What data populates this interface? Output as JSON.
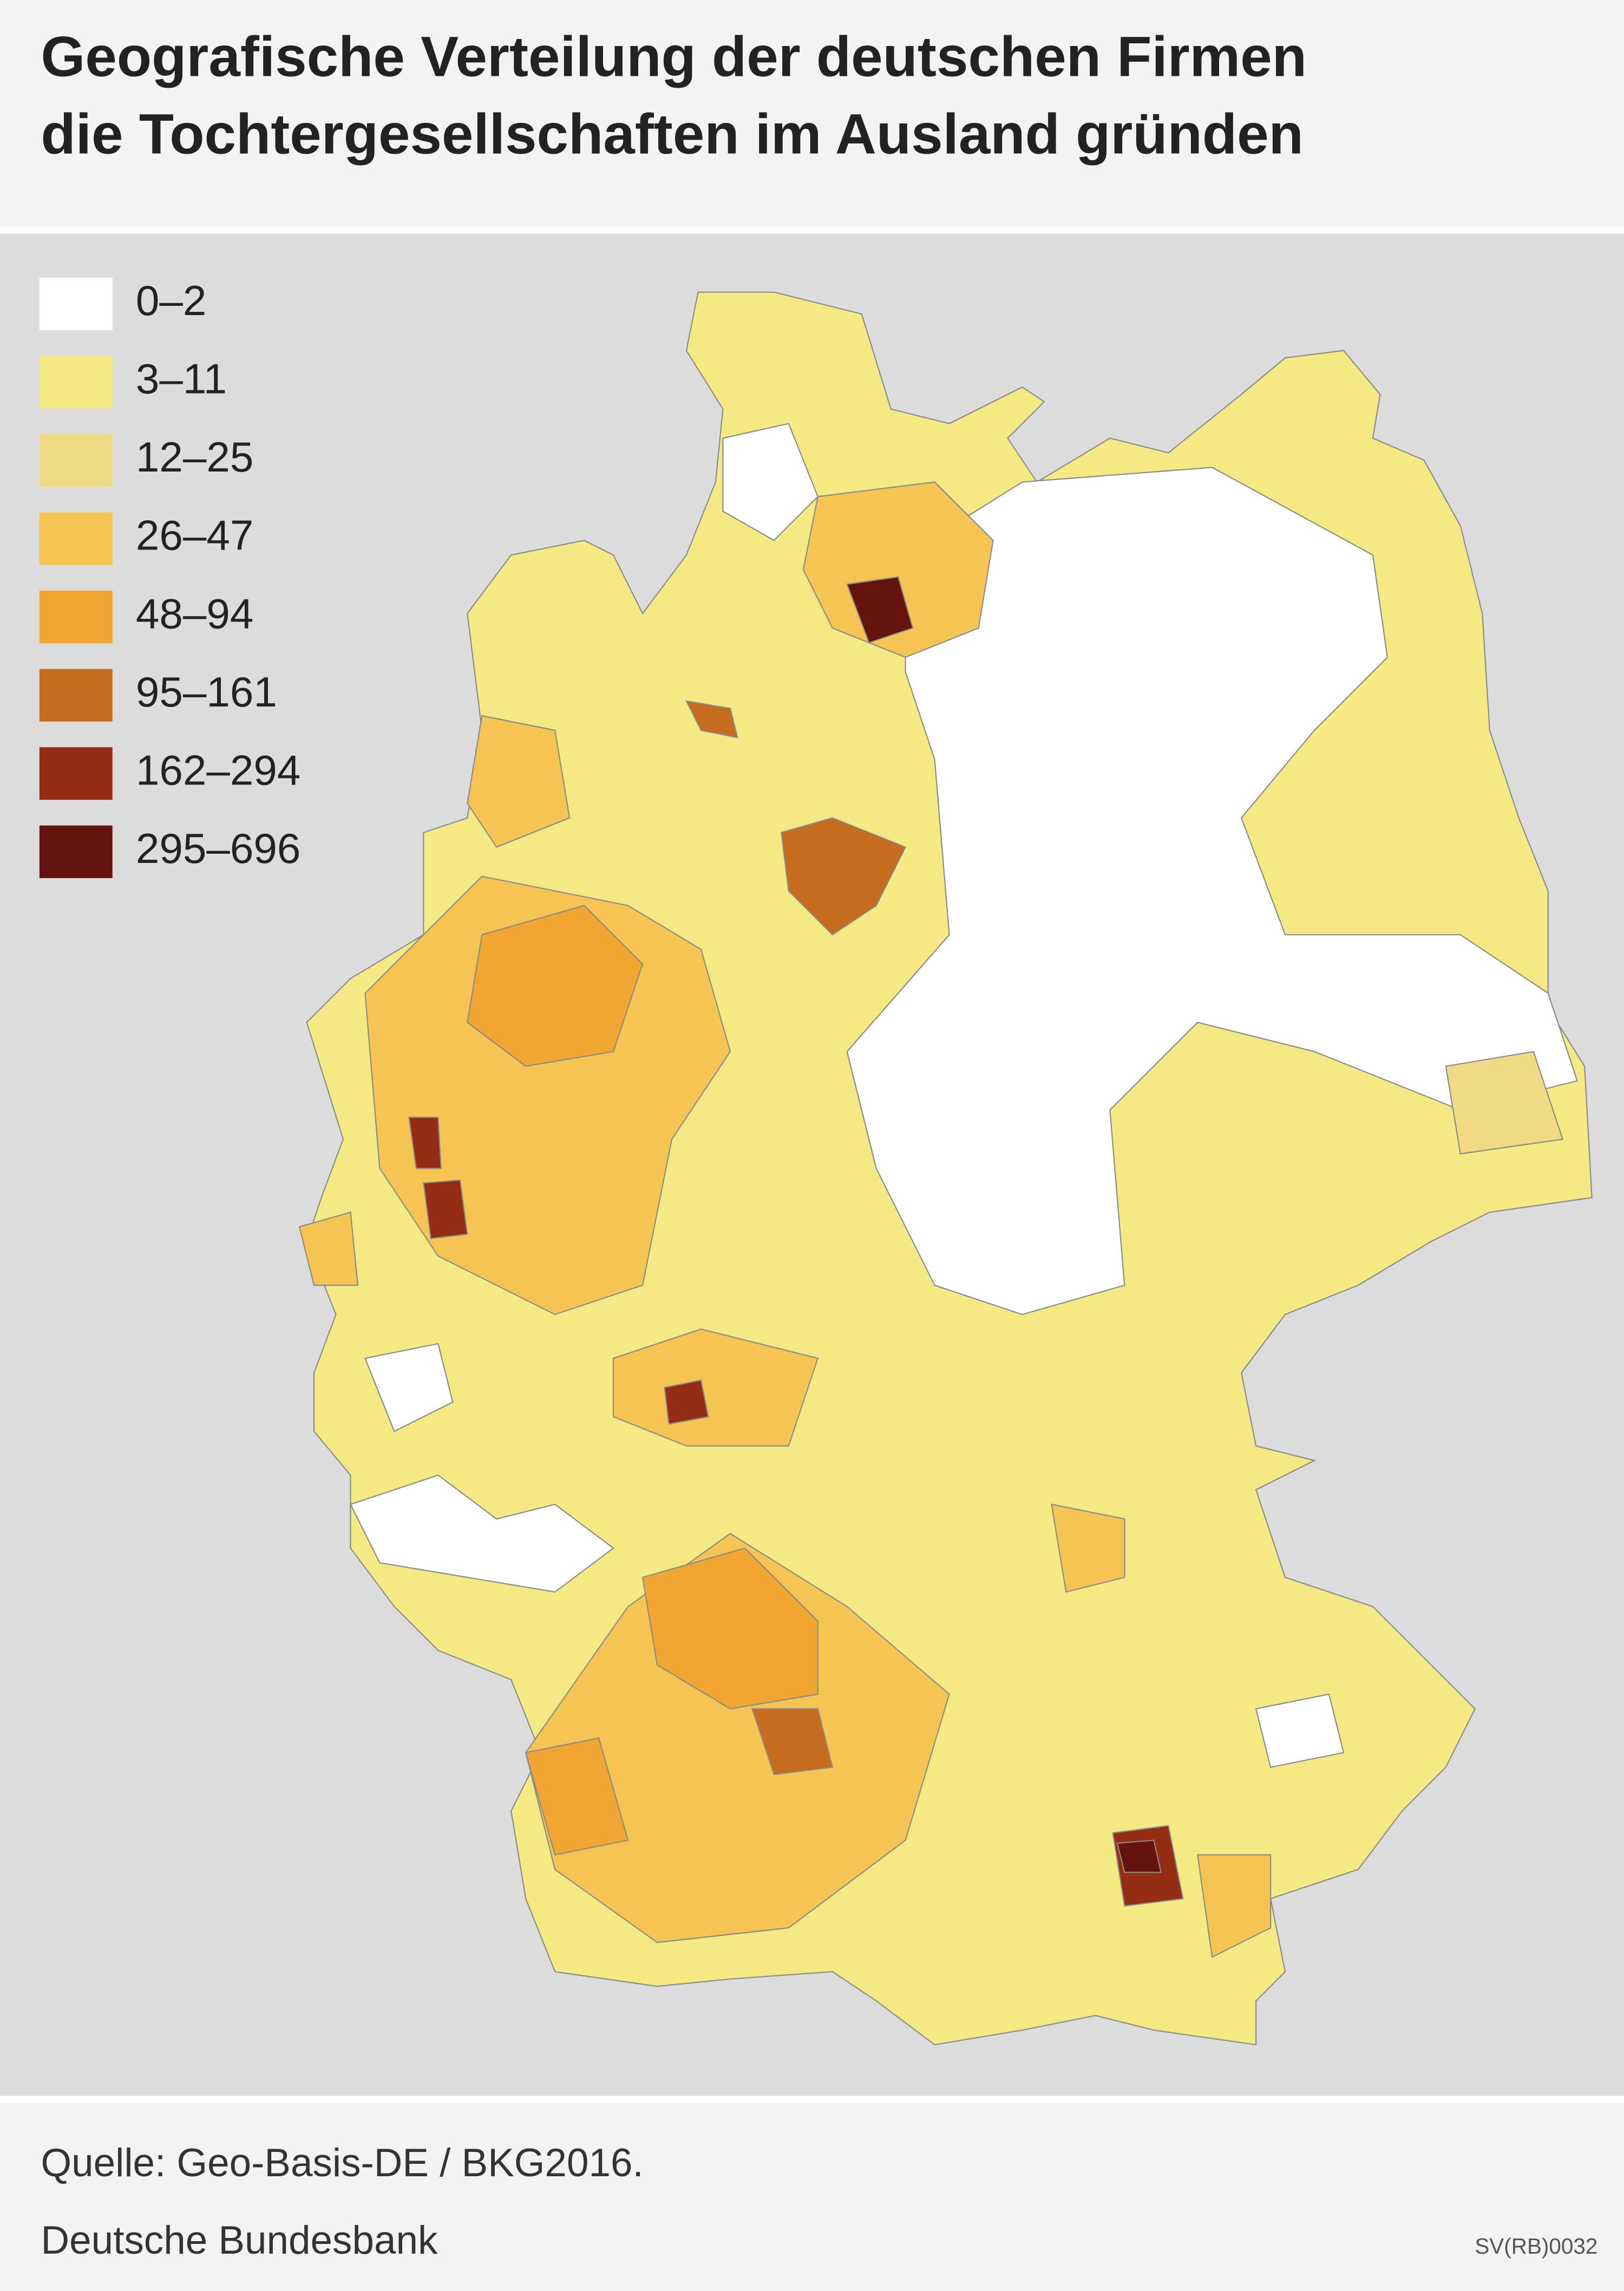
{
  "header": {
    "title_lines": [
      "Geografische Verteilung der deutschen Firmen",
      "die Tochtergesellschaften im Ausland gründen"
    ]
  },
  "legend": {
    "items": [
      {
        "label": "0–2",
        "color": "#ffffff"
      },
      {
        "label": "3–11",
        "color": "#f3ea84"
      },
      {
        "label": "12–25",
        "color": "#f0da84"
      },
      {
        "label": "26–47",
        "color": "#f5c452"
      },
      {
        "label": "48–94",
        "color": "#f0a630"
      },
      {
        "label": "95–161",
        "color": "#c56c1e"
      },
      {
        "label": "162–294",
        "color": "#952d14"
      },
      {
        "label": "295–696",
        "color": "#65130f"
      }
    ]
  },
  "footer": {
    "source": "Quelle: Geo-Basis-DE / BKG2016.",
    "publisher": "Deutsche Bundesbank",
    "code": "SV(RB)0032"
  }
}
